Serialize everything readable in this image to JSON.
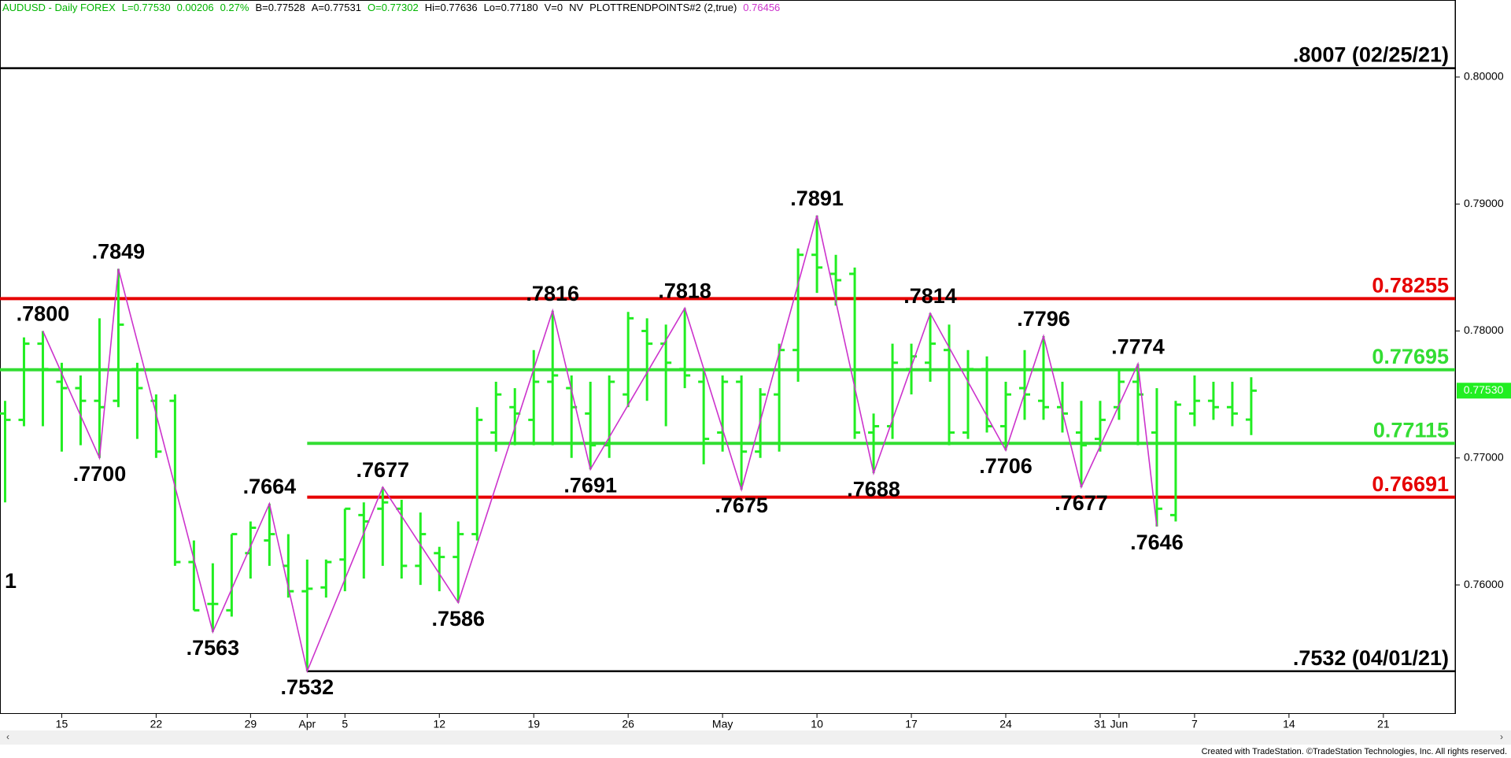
{
  "chart_data": {
    "type": "ohlc",
    "header": [
      {
        "text": "AUDUSD - Daily  FOREX",
        "color": "#00b400"
      },
      {
        "text": "L=0.77530",
        "color": "#00b400"
      },
      {
        "text": "0.00206",
        "color": "#00b400"
      },
      {
        "text": "0.27%",
        "color": "#00b400"
      },
      {
        "text": "B=0.77528",
        "color": "#000000"
      },
      {
        "text": "A=0.77531",
        "color": "#000000"
      },
      {
        "text": "O=0.77302",
        "color": "#00b400"
      },
      {
        "text": "Hi=0.77636",
        "color": "#000000"
      },
      {
        "text": "Lo=0.77180",
        "color": "#000000"
      },
      {
        "text": "V=0",
        "color": "#000000"
      },
      {
        "text": "NV",
        "color": "#000000"
      },
      {
        "text": "PLOTTRENDPOINTS#2 (2,true)",
        "color": "#000000"
      },
      {
        "text": "0.76456",
        "color": "#cc33cc"
      }
    ],
    "xlim": [
      -3.27,
      73.8
    ],
    "ylim": [
      0.7499,
      0.80607
    ],
    "xticks": [
      {
        "value": 0,
        "label": "15"
      },
      {
        "value": 5,
        "label": "22"
      },
      {
        "value": 10,
        "label": "29"
      },
      {
        "value": 13,
        "label": "Apr"
      },
      {
        "value": 15,
        "label": "5"
      },
      {
        "value": 20,
        "label": "12"
      },
      {
        "value": 25,
        "label": "19"
      },
      {
        "value": 30,
        "label": "26"
      },
      {
        "value": 35,
        "label": "May"
      },
      {
        "value": 40,
        "label": "10"
      },
      {
        "value": 45,
        "label": "17"
      },
      {
        "value": 50,
        "label": "24"
      },
      {
        "value": 55,
        "label": "31"
      },
      {
        "value": 56,
        "label": "Jun"
      },
      {
        "value": 60,
        "label": "7"
      },
      {
        "value": 65,
        "label": "14"
      },
      {
        "value": 70,
        "label": "21"
      }
    ],
    "yticks": [
      {
        "value": 0.76,
        "label": "0.76000"
      },
      {
        "value": 0.77,
        "label": "0.77000"
      },
      {
        "value": 0.78,
        "label": "0.78000"
      },
      {
        "value": 0.79,
        "label": "0.79000"
      },
      {
        "value": 0.8,
        "label": "0.80000"
      }
    ],
    "bar_color": "#22ee22",
    "bars": {
      "x": [
        -3,
        -2,
        -1,
        0,
        1,
        2,
        3,
        4,
        5,
        6,
        7,
        8,
        9,
        10,
        11,
        12,
        13,
        14,
        15,
        16,
        17,
        18,
        19,
        20,
        21,
        22,
        23,
        24,
        25,
        26,
        27,
        28,
        29,
        30,
        31,
        32,
        33,
        34,
        35,
        36,
        37,
        38,
        39,
        40,
        41,
        42,
        43,
        44,
        45,
        46,
        47,
        48,
        49,
        50,
        51,
        52,
        53,
        54,
        55,
        56,
        57,
        58,
        59,
        60,
        61,
        62,
        63
      ],
      "open": [
        0.7735,
        0.773,
        0.779,
        0.776,
        0.7755,
        0.7745,
        0.7745,
        0.777,
        0.7745,
        0.7745,
        0.7618,
        0.7585,
        0.758,
        0.7625,
        0.7635,
        0.7615,
        0.7595,
        0.7598,
        0.762,
        0.7655,
        0.766,
        0.766,
        0.7615,
        0.7625,
        0.7622,
        0.764,
        0.772,
        0.774,
        0.773,
        0.776,
        0.7755,
        0.7735,
        0.771,
        0.775,
        0.78,
        0.779,
        0.777,
        0.776,
        0.772,
        0.776,
        0.7705,
        0.775,
        0.7785,
        0.786,
        0.7845,
        0.7845,
        0.772,
        0.7725,
        0.777,
        0.7775,
        0.7785,
        0.772,
        0.777,
        0.7725,
        0.7755,
        0.7745,
        0.774,
        0.772,
        0.7715,
        0.774,
        0.776,
        0.772,
        0.7655,
        0.7735,
        0.7745,
        0.774,
        0.77302
      ],
      "high": [
        0.7745,
        0.7795,
        0.78,
        0.7775,
        0.7765,
        0.781,
        0.7849,
        0.7775,
        0.775,
        0.775,
        0.7635,
        0.7617,
        0.764,
        0.765,
        0.7664,
        0.764,
        0.762,
        0.762,
        0.766,
        0.7665,
        0.7677,
        0.7667,
        0.7657,
        0.763,
        0.765,
        0.774,
        0.776,
        0.7755,
        0.7785,
        0.7816,
        0.7765,
        0.776,
        0.7765,
        0.7815,
        0.781,
        0.7805,
        0.7818,
        0.777,
        0.7765,
        0.7765,
        0.7755,
        0.779,
        0.7865,
        0.7891,
        0.786,
        0.785,
        0.7735,
        0.779,
        0.779,
        0.7814,
        0.7805,
        0.7785,
        0.778,
        0.776,
        0.7785,
        0.7796,
        0.776,
        0.7745,
        0.7745,
        0.777,
        0.7774,
        0.7755,
        0.7745,
        0.7765,
        0.776,
        0.776,
        0.77636
      ],
      "low": [
        0.7665,
        0.7725,
        0.7725,
        0.7705,
        0.771,
        0.77,
        0.774,
        0.7715,
        0.77,
        0.7615,
        0.758,
        0.7563,
        0.7575,
        0.7605,
        0.7615,
        0.759,
        0.7532,
        0.759,
        0.7595,
        0.7605,
        0.7615,
        0.7605,
        0.76,
        0.7595,
        0.7586,
        0.7635,
        0.7705,
        0.771,
        0.771,
        0.771,
        0.77,
        0.7691,
        0.77,
        0.774,
        0.7745,
        0.7725,
        0.7755,
        0.7695,
        0.7705,
        0.7675,
        0.77,
        0.7705,
        0.776,
        0.783,
        0.782,
        0.7715,
        0.7688,
        0.7715,
        0.775,
        0.776,
        0.771,
        0.7715,
        0.772,
        0.7706,
        0.773,
        0.773,
        0.772,
        0.7677,
        0.7705,
        0.773,
        0.771,
        0.7646,
        0.765,
        0.7725,
        0.773,
        0.7725,
        0.7718
      ],
      "close": [
        0.773,
        0.779,
        0.777,
        0.7755,
        0.7745,
        0.774,
        0.7805,
        0.7755,
        0.7705,
        0.7618,
        0.758,
        0.7585,
        0.764,
        0.7645,
        0.764,
        0.7595,
        0.7597,
        0.7618,
        0.766,
        0.765,
        0.7665,
        0.7615,
        0.764,
        0.7622,
        0.764,
        0.773,
        0.775,
        0.7735,
        0.776,
        0.7765,
        0.774,
        0.771,
        0.776,
        0.781,
        0.779,
        0.7775,
        0.7765,
        0.7715,
        0.776,
        0.7705,
        0.775,
        0.7785,
        0.786,
        0.785,
        0.784,
        0.772,
        0.7725,
        0.7775,
        0.778,
        0.779,
        0.772,
        0.777,
        0.7725,
        0.775,
        0.775,
        0.774,
        0.7735,
        0.771,
        0.773,
        0.776,
        0.775,
        0.766,
        0.7742,
        0.7745,
        0.774,
        0.7735,
        0.7753
      ]
    },
    "trend_color": "#cc33cc",
    "trend_points": {
      "x": [
        -1,
        2,
        3,
        8,
        11,
        13,
        17,
        21,
        26,
        28,
        33,
        36,
        40,
        43,
        46,
        50,
        52,
        54,
        57,
        58
      ],
      "values": [
        0.78,
        0.77,
        0.7849,
        0.7563,
        0.7664,
        0.7532,
        0.7677,
        0.7586,
        0.7816,
        0.7691,
        0.7818,
        0.7675,
        0.7891,
        0.7688,
        0.7814,
        0.7706,
        0.7796,
        0.7677,
        0.7774,
        0.7646
      ],
      "value_labels": [
        ".7800",
        ".7700",
        ".7849",
        ".7563",
        ".7664",
        ".7532",
        ".7677",
        ".7586",
        ".7816",
        ".7691",
        ".7818",
        ".7675",
        ".7891",
        ".7688",
        ".7814",
        ".7706",
        ".7796",
        ".7677",
        ".7774",
        ".7646"
      ]
    },
    "levels": [
      {
        "value": 0.8007,
        "label": ".8007 (02/25/21)",
        "color": "#000000"
      },
      {
        "value": 0.78255,
        "label": "0.78255",
        "color": "#e60000"
      },
      {
        "value": 0.77695,
        "label": "0.77695",
        "color": "#33dd33"
      },
      {
        "value": 0.77115,
        "label": "0.77115",
        "color": "#33dd33",
        "x_start": 13
      },
      {
        "value": 0.76691,
        "label": "0.76691",
        "color": "#e60000",
        "x_start": 13
      },
      {
        "value": 0.7532,
        "label": ".7532 (04/01/21)",
        "color": "#000000",
        "x_start": 13
      }
    ],
    "last_price": {
      "value": 0.7753,
      "label": "0.77530"
    },
    "edge_label": "1",
    "footer": "Created with TradeStation. ©TradeStation Technologies, Inc. All rights reserved."
  }
}
